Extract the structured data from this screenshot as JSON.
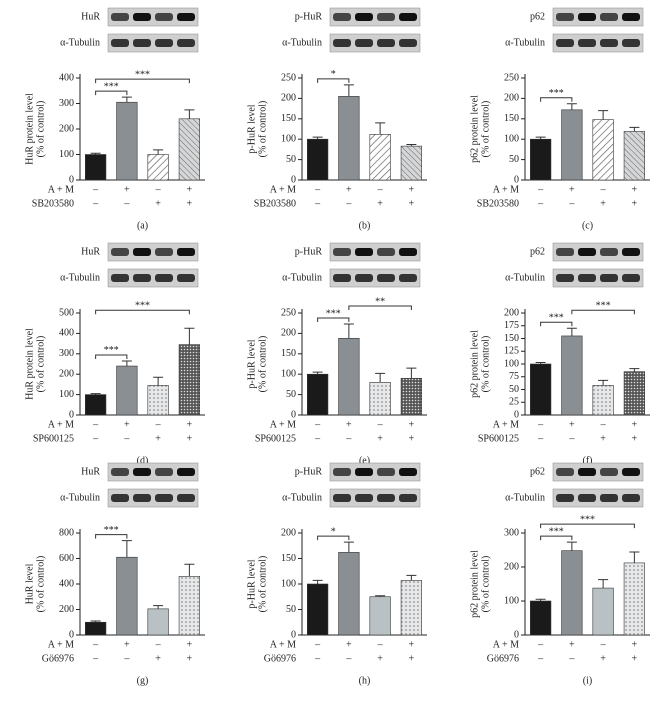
{
  "chart_data": [
    {
      "type": "bar",
      "panel": "(a)",
      "blot_labels": [
        "HuR",
        "α-Tubulin"
      ],
      "ylabel": [
        "HuR protein level",
        "(% of control)"
      ],
      "treatments": [
        {
          "name": "A + M",
          "signs": [
            "–",
            "+",
            "–",
            "+"
          ]
        },
        {
          "name": "SB203580",
          "signs": [
            "–",
            "–",
            "+",
            "+"
          ]
        }
      ],
      "values": [
        100,
        305,
        100,
        240
      ],
      "errors": [
        5,
        20,
        18,
        35
      ],
      "fills": [
        "#1a1a1a",
        "#8a8f93",
        "hatch",
        "hatchgray"
      ],
      "ylim": [
        0,
        400
      ],
      "yticks": [
        0,
        100,
        200,
        300,
        400
      ],
      "sig": [
        {
          "label": "***",
          "bars": [
            0,
            1
          ]
        },
        {
          "label": "***",
          "bars": [
            0,
            3
          ]
        }
      ]
    },
    {
      "type": "bar",
      "panel": "(b)",
      "blot_labels": [
        "p-HuR",
        "α-Tubulin"
      ],
      "ylabel": [
        "p-HuR level",
        "(% of control)"
      ],
      "treatments": [
        {
          "name": "A + M",
          "signs": [
            "–",
            "+",
            "–",
            "+"
          ]
        },
        {
          "name": "SB203580",
          "signs": [
            "–",
            "–",
            "+",
            "+"
          ]
        }
      ],
      "values": [
        100,
        205,
        112,
        83
      ],
      "errors": [
        5,
        28,
        28,
        4
      ],
      "fills": [
        "#1a1a1a",
        "#8a8f93",
        "hatch",
        "hatchgray"
      ],
      "ylim": [
        0,
        250
      ],
      "yticks": [
        0,
        50,
        100,
        150,
        200,
        250
      ],
      "sig": [
        {
          "label": "*",
          "bars": [
            0,
            1
          ]
        }
      ]
    },
    {
      "type": "bar",
      "panel": "(c)",
      "blot_labels": [
        "p62",
        "α-Tubulin"
      ],
      "ylabel": [
        "p62 protein level",
        "(% of control)"
      ],
      "treatments": [
        {
          "name": "A + M",
          "signs": [
            "–",
            "+",
            "–",
            "+"
          ]
        },
        {
          "name": "SB203580",
          "signs": [
            "–",
            "–",
            "+",
            "+"
          ]
        }
      ],
      "values": [
        100,
        172,
        148,
        119
      ],
      "errors": [
        5,
        15,
        22,
        10
      ],
      "fills": [
        "#1a1a1a",
        "#8a8f93",
        "hatch",
        "hatchgray"
      ],
      "ylim": [
        0,
        250
      ],
      "yticks": [
        0,
        50,
        100,
        150,
        200,
        250
      ],
      "sig": [
        {
          "label": "***",
          "bars": [
            0,
            1
          ]
        }
      ]
    },
    {
      "type": "bar",
      "panel": "(d)",
      "blot_labels": [
        "HuR",
        "α-Tubulin"
      ],
      "ylabel": [
        "HuR protein level",
        "(% of control)"
      ],
      "treatments": [
        {
          "name": "A + M",
          "signs": [
            "–",
            "+",
            "–",
            "+"
          ]
        },
        {
          "name": "SP600125",
          "signs": [
            "–",
            "–",
            "+",
            "+"
          ]
        }
      ],
      "values": [
        100,
        240,
        145,
        345
      ],
      "errors": [
        5,
        25,
        40,
        80
      ],
      "fills": [
        "#1a1a1a",
        "#8a8f93",
        "dots",
        "densedots"
      ],
      "ylim": [
        0,
        500
      ],
      "yticks": [
        0,
        100,
        200,
        300,
        400,
        500
      ],
      "sig": [
        {
          "label": "***",
          "bars": [
            0,
            1
          ]
        },
        {
          "label": "***",
          "bars": [
            0,
            3
          ]
        }
      ]
    },
    {
      "type": "bar",
      "panel": "(e)",
      "blot_labels": [
        "p-HuR",
        "α-Tubulin"
      ],
      "ylabel": [
        "p-HuR level",
        "(% of control)"
      ],
      "treatments": [
        {
          "name": "A + M",
          "signs": [
            "–",
            "+",
            "–",
            "+"
          ]
        },
        {
          "name": "SP600125",
          "signs": [
            "–",
            "–",
            "+",
            "+"
          ]
        }
      ],
      "values": [
        100,
        188,
        80,
        90
      ],
      "errors": [
        5,
        35,
        22,
        25
      ],
      "fills": [
        "#1a1a1a",
        "#8a8f93",
        "dots",
        "densedots"
      ],
      "ylim": [
        0,
        250
      ],
      "yticks": [
        0,
        50,
        100,
        150,
        200,
        250
      ],
      "sig": [
        {
          "label": "***",
          "bars": [
            0,
            1
          ]
        },
        {
          "label": "**",
          "bars": [
            1,
            3
          ]
        }
      ]
    },
    {
      "type": "bar",
      "panel": "(f)",
      "blot_labels": [
        "p62",
        "α-Tubulin"
      ],
      "ylabel": [
        "p62 protein level",
        "(% of control)"
      ],
      "treatments": [
        {
          "name": "A + M",
          "signs": [
            "–",
            "+",
            "–",
            "+"
          ]
        },
        {
          "name": "SP600125",
          "signs": [
            "–",
            "–",
            "+",
            "+"
          ]
        }
      ],
      "values": [
        100,
        155,
        58,
        85
      ],
      "errors": [
        3,
        15,
        10,
        6
      ],
      "fills": [
        "#1a1a1a",
        "#8a8f93",
        "dots",
        "densedots"
      ],
      "ylim": [
        0,
        200
      ],
      "yticks": [
        0,
        25,
        50,
        75,
        100,
        125,
        150,
        175,
        200
      ],
      "sig": [
        {
          "label": "***",
          "bars": [
            0,
            1
          ]
        },
        {
          "label": "***",
          "bars": [
            1,
            3
          ]
        }
      ]
    },
    {
      "type": "bar",
      "panel": "(g)",
      "blot_labels": [
        "HuR",
        "α-Tubulin"
      ],
      "ylabel": [
        "HuR level",
        "(% of control)"
      ],
      "treatments": [
        {
          "name": "A + M",
          "signs": [
            "–",
            "+",
            "–",
            "+"
          ]
        },
        {
          "name": "Gö6976",
          "signs": [
            "–",
            "–",
            "+",
            "+"
          ]
        }
      ],
      "values": [
        100,
        610,
        205,
        460
      ],
      "errors": [
        10,
        130,
        25,
        95
      ],
      "fills": [
        "#1a1a1a",
        "#8a8f93",
        "#b9c1c4",
        "dots"
      ],
      "ylim": [
        0,
        800
      ],
      "yticks": [
        0,
        200,
        400,
        600,
        800
      ],
      "sig": [
        {
          "label": "***",
          "bars": [
            0,
            1
          ]
        }
      ]
    },
    {
      "type": "bar",
      "panel": "(h)",
      "blot_labels": [
        "p-HuR",
        "α-Tubulin"
      ],
      "ylabel": [
        "p-HuR level",
        "(% of control)"
      ],
      "treatments": [
        {
          "name": "A + M",
          "signs": [
            "–",
            "+",
            "–",
            "+"
          ]
        },
        {
          "name": "Gö6976",
          "signs": [
            "–",
            "–",
            "+",
            "+"
          ]
        }
      ],
      "values": [
        100,
        162,
        75,
        107
      ],
      "errors": [
        7,
        20,
        2,
        10
      ],
      "fills": [
        "#1a1a1a",
        "#8a8f93",
        "#b9c1c4",
        "dots"
      ],
      "ylim": [
        0,
        200
      ],
      "yticks": [
        0,
        50,
        100,
        150,
        200
      ],
      "sig": [
        {
          "label": "*",
          "bars": [
            0,
            1
          ]
        }
      ]
    },
    {
      "type": "bar",
      "panel": "(i)",
      "blot_labels": [
        "p62",
        "α-Tubulin"
      ],
      "ylabel": [
        "p62 protein level",
        "(% of control)"
      ],
      "treatments": [
        {
          "name": "A + M",
          "signs": [
            "–",
            "+",
            "–",
            "+"
          ]
        },
        {
          "name": "Gö6976",
          "signs": [
            "–",
            "–",
            "+",
            "+"
          ]
        }
      ],
      "values": [
        100,
        248,
        138,
        212
      ],
      "errors": [
        5,
        25,
        25,
        32
      ],
      "fills": [
        "#1a1a1a",
        "#8a8f93",
        "#b9c1c4",
        "dots"
      ],
      "ylim": [
        0,
        300
      ],
      "yticks": [
        0,
        100,
        200,
        300
      ],
      "sig": [
        {
          "label": "***",
          "bars": [
            0,
            1
          ]
        },
        {
          "label": "***",
          "bars": [
            0,
            3
          ]
        }
      ]
    }
  ]
}
